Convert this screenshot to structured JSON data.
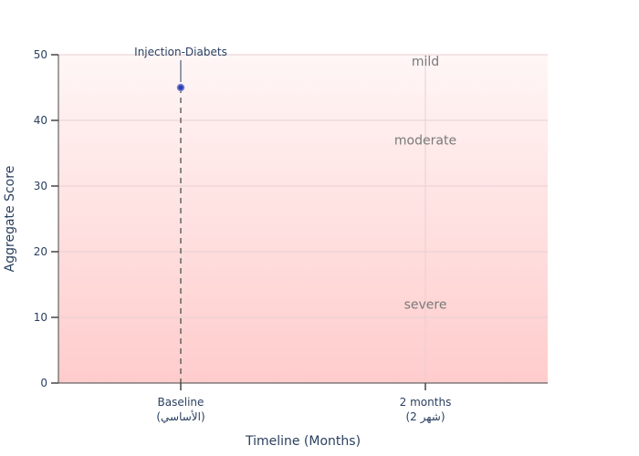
{
  "chart_data": {
    "type": "scatter",
    "xlabel": "Timeline (Months)",
    "ylabel": "Aggregate Score",
    "ylim": [
      0,
      50
    ],
    "yticks": [
      0,
      10,
      20,
      30,
      40,
      50
    ],
    "categories": [
      {
        "line1": "Baseline",
        "line2": "(الأساسي)"
      },
      {
        "line1": "2 months",
        "line2": "(شهر 2)"
      }
    ],
    "zones": [
      {
        "label": "mild",
        "y": 49
      },
      {
        "label": "moderate",
        "y": 37
      },
      {
        "label": "severe",
        "y": 12
      }
    ],
    "background_gradient": {
      "top": "#fff6f6",
      "bottom": "#ffcccc"
    },
    "series": [
      {
        "color": "#2f3fb0",
        "points": [
          {
            "category_index": 0,
            "y": 45
          }
        ],
        "annotation": "Injection-Diabets"
      }
    ],
    "grid": true
  }
}
